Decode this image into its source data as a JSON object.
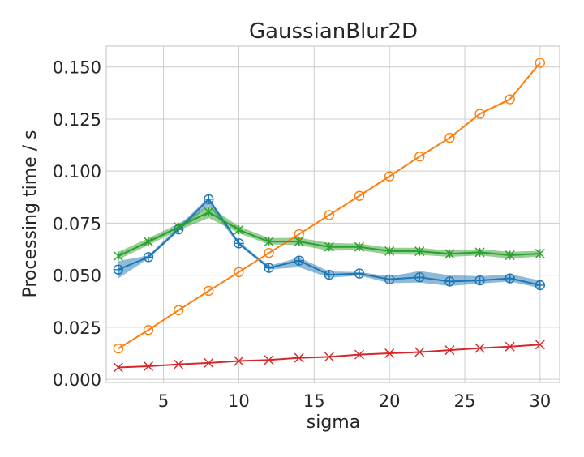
{
  "chart_data": {
    "type": "line",
    "title": "GaussianBlur2D",
    "xlabel": "sigma",
    "ylabel": "Processing time / s",
    "xlim": [
      1.2,
      31.3
    ],
    "ylim": [
      -0.0015,
      0.16
    ],
    "xticks": [
      5,
      10,
      15,
      20,
      25,
      30
    ],
    "xtick_labels": [
      "5",
      "10",
      "15",
      "20",
      "25",
      "30"
    ],
    "yticks": [
      0.0,
      0.025,
      0.05,
      0.075,
      0.1,
      0.125,
      0.15
    ],
    "ytick_labels": [
      "0.000",
      "0.025",
      "0.050",
      "0.075",
      "0.100",
      "0.125",
      "0.150"
    ],
    "grid": true,
    "x": [
      2,
      4,
      6,
      8,
      10,
      12,
      14,
      16,
      18,
      20,
      22,
      24,
      26,
      28,
      30
    ],
    "series": [
      {
        "color": "#1f77b4",
        "marker": "circle-plus",
        "values": [
          0.0527,
          0.0587,
          0.072,
          0.0865,
          0.0653,
          0.0535,
          0.057,
          0.0502,
          0.0508,
          0.048,
          0.049,
          0.047,
          0.0475,
          0.0485,
          0.0452
        ],
        "lower": [
          0.0485,
          0.058,
          0.0712,
          0.0835,
          0.0645,
          0.0528,
          0.0538,
          0.0488,
          0.0498,
          0.0462,
          0.0465,
          0.0448,
          0.046,
          0.047,
          0.0438
        ],
        "upper": [
          0.0568,
          0.0595,
          0.0735,
          0.0875,
          0.0662,
          0.0545,
          0.0585,
          0.0518,
          0.0515,
          0.0495,
          0.052,
          0.05,
          0.0495,
          0.0505,
          0.0475
        ]
      },
      {
        "color": "#ff7f0e",
        "marker": "circle",
        "values": [
          0.0148,
          0.0237,
          0.0332,
          0.0425,
          0.0515,
          0.0607,
          0.0697,
          0.0789,
          0.0881,
          0.0975,
          0.107,
          0.116,
          0.1275,
          0.1345,
          0.152
        ],
        "lower": [
          0.0145,
          0.0234,
          0.0329,
          0.0422,
          0.0512,
          0.0604,
          0.0694,
          0.0786,
          0.0878,
          0.0972,
          0.1066,
          0.1156,
          0.127,
          0.134,
          0.1515
        ],
        "upper": [
          0.0151,
          0.024,
          0.0335,
          0.0428,
          0.0518,
          0.061,
          0.07,
          0.0792,
          0.0884,
          0.0978,
          0.1074,
          0.1164,
          0.128,
          0.135,
          0.1525
        ]
      },
      {
        "color": "#2ca02c",
        "marker": "x-star",
        "values": [
          0.0592,
          0.0661,
          0.0731,
          0.0803,
          0.0718,
          0.0661,
          0.0662,
          0.0636,
          0.0636,
          0.0616,
          0.0615,
          0.0603,
          0.061,
          0.0596,
          0.0604
        ],
        "lower": [
          0.0575,
          0.0645,
          0.0715,
          0.0775,
          0.0702,
          0.0648,
          0.0645,
          0.0618,
          0.062,
          0.06,
          0.0598,
          0.0588,
          0.0595,
          0.058,
          0.059
        ],
        "upper": [
          0.0612,
          0.0678,
          0.0748,
          0.0832,
          0.0735,
          0.0678,
          0.068,
          0.0655,
          0.0652,
          0.0632,
          0.0632,
          0.0618,
          0.0625,
          0.0612,
          0.0618
        ]
      },
      {
        "color": "#d62728",
        "marker": "x",
        "values": [
          0.0057,
          0.0063,
          0.0072,
          0.0079,
          0.0088,
          0.0093,
          0.0103,
          0.0108,
          0.0119,
          0.0125,
          0.0131,
          0.014,
          0.015,
          0.0157,
          0.0167
        ],
        "lower": [
          0.0055,
          0.0061,
          0.007,
          0.0077,
          0.0086,
          0.0091,
          0.0101,
          0.0106,
          0.0117,
          0.0123,
          0.0129,
          0.0138,
          0.0148,
          0.0155,
          0.0165
        ],
        "upper": [
          0.0059,
          0.0065,
          0.0074,
          0.0081,
          0.009,
          0.0095,
          0.0105,
          0.011,
          0.0121,
          0.0127,
          0.0133,
          0.0142,
          0.0152,
          0.0159,
          0.0169
        ]
      }
    ]
  }
}
